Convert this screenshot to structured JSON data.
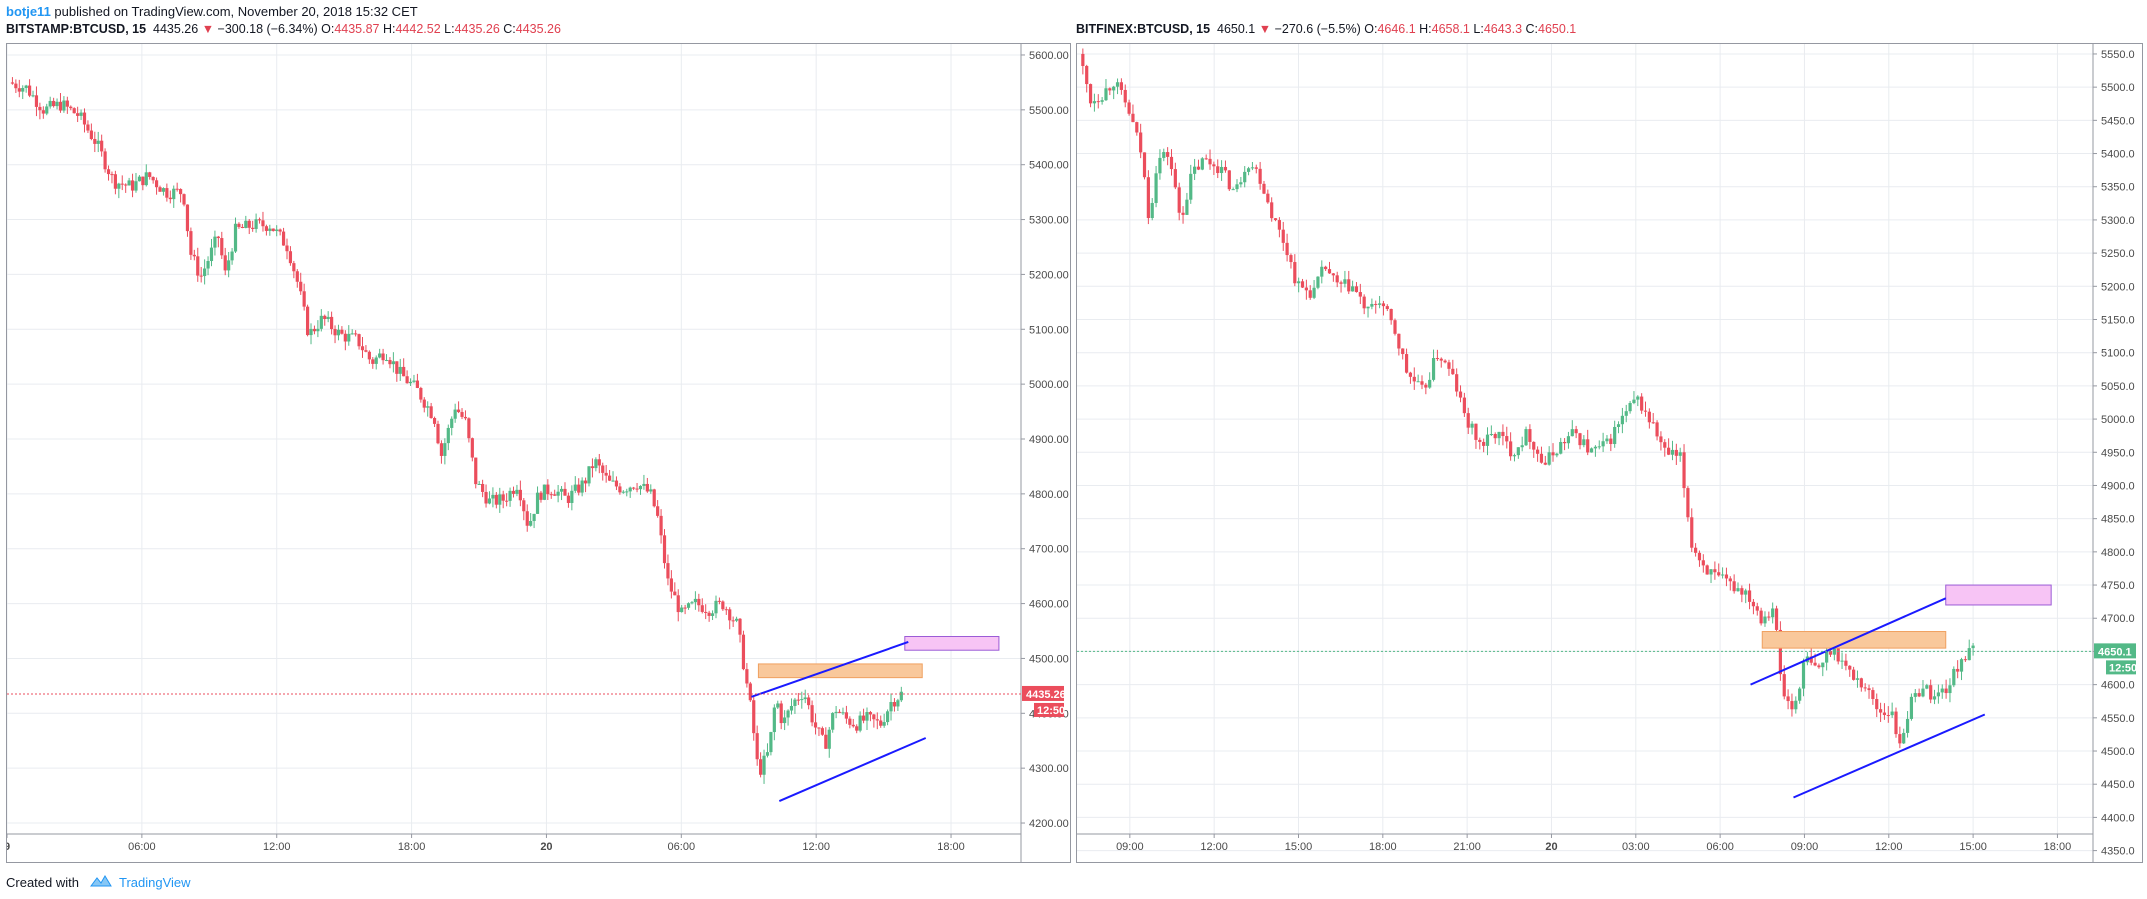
{
  "header": {
    "user": "botje11",
    "published": "published on TradingView.com, November 20, 2018 15:32 CET"
  },
  "footer": {
    "created": "Created with",
    "brand": "TradingView"
  },
  "colors": {
    "up": "#53b987",
    "down": "#eb4d5c",
    "trend": "#1a1aff",
    "zone_orange": "#f9c89b",
    "zone_pink": "#f7c4f5"
  },
  "chart_data": [
    {
      "type": "candlestick",
      "legend": {
        "symbol": "BITSTAMP:BTCUSD, 15",
        "last": "4435.26",
        "change": "−300.18 (−6.34%)",
        "o_label": "O:",
        "o": "4435.87",
        "h_label": "H:",
        "h": "4442.52",
        "l_label": "L:",
        "l": "4435.26",
        "c_label": "C:",
        "c": "4435.26"
      },
      "ylim": [
        4180,
        5620
      ],
      "y_ticks": [
        "5600.00",
        "5500.00",
        "5400.00",
        "5300.00",
        "5200.00",
        "5100.00",
        "5000.00",
        "4900.00",
        "4800.00",
        "4700.00",
        "4600.00",
        "4500.00",
        "4400.00",
        "4300.00",
        "4200.00"
      ],
      "y_tick_values": [
        5600,
        5500,
        5400,
        5300,
        5200,
        5100,
        5000,
        4900,
        4800,
        4700,
        4600,
        4500,
        4400,
        4300,
        4200
      ],
      "x_ticks": [
        "9",
        "06:00",
        "12:00",
        "18:00",
        "20",
        "06:00",
        "12:00",
        "18:00"
      ],
      "price_line": 4435.26,
      "price_label": "4435.26",
      "countdown": "12:50",
      "path": [
        [
          0,
          5550
        ],
        [
          5,
          5540
        ],
        [
          10,
          5500
        ],
        [
          15,
          5510
        ],
        [
          20,
          5490
        ],
        [
          25,
          5440
        ],
        [
          30,
          5370
        ],
        [
          35,
          5360
        ],
        [
          40,
          5380
        ],
        [
          45,
          5350
        ],
        [
          50,
          5350
        ],
        [
          52,
          5240
        ],
        [
          55,
          5195
        ],
        [
          60,
          5270
        ],
        [
          62,
          5200
        ],
        [
          65,
          5280
        ],
        [
          70,
          5290
        ],
        [
          75,
          5290
        ],
        [
          80,
          5250
        ],
        [
          83,
          5180
        ],
        [
          86,
          5090
        ],
        [
          90,
          5120
        ],
        [
          95,
          5090
        ],
        [
          100,
          5080
        ],
        [
          104,
          5040
        ],
        [
          108,
          5060
        ],
        [
          112,
          5020
        ],
        [
          117,
          4990
        ],
        [
          122,
          4940
        ],
        [
          124,
          4870
        ],
        [
          128,
          4960
        ],
        [
          131,
          4930
        ],
        [
          134,
          4820
        ],
        [
          138,
          4785
        ],
        [
          142,
          4790
        ],
        [
          146,
          4820
        ],
        [
          149,
          4740
        ],
        [
          152,
          4800
        ],
        [
          156,
          4810
        ],
        [
          160,
          4790
        ],
        [
          165,
          4820
        ],
        [
          168,
          4860
        ],
        [
          172,
          4820
        ],
        [
          176,
          4810
        ],
        [
          180,
          4820
        ],
        [
          184,
          4800
        ],
        [
          186,
          4760
        ],
        [
          189,
          4640
        ],
        [
          193,
          4580
        ],
        [
          197,
          4600
        ],
        [
          201,
          4590
        ],
        [
          205,
          4600
        ],
        [
          209,
          4560
        ],
        [
          213,
          4400
        ],
        [
          215,
          4290
        ],
        [
          218,
          4330
        ],
        [
          220,
          4430
        ],
        [
          222,
          4380
        ],
        [
          225,
          4420
        ],
        [
          228,
          4440
        ],
        [
          231,
          4380
        ],
        [
          234,
          4340
        ],
        [
          237,
          4410
        ],
        [
          240,
          4390
        ],
        [
          243,
          4380
        ],
        [
          246,
          4390
        ],
        [
          250,
          4380
        ],
        [
          253,
          4420
        ],
        [
          256,
          4435.26
        ]
      ],
      "drawings": {
        "zone_orange": [
          215,
          4465,
          262,
          4490
        ],
        "zone_pink": [
          257,
          4515,
          284,
          4540
        ],
        "trend_upper": [
          [
            213,
            4430
          ],
          [
            258,
            4530
          ]
        ],
        "trend_lower": [
          [
            221,
            4240
          ],
          [
            263,
            4355
          ]
        ]
      }
    },
    {
      "type": "candlestick",
      "legend": {
        "symbol": "BITFINEX:BTCUSD, 15",
        "last": "4650.1",
        "change": "−270.6 (−5.5%)",
        "o_label": "O:",
        "o": "4646.1",
        "h_label": "H:",
        "h": "4658.1",
        "l_label": "L:",
        "l": "4643.3",
        "c_label": "C:",
        "c": "4650.1"
      },
      "ylim": [
        4375,
        5565
      ],
      "y_ticks": [
        "5550.0",
        "5500.0",
        "5450.0",
        "5400.0",
        "5350.0",
        "5300.0",
        "5250.0",
        "5200.0",
        "5150.0",
        "5100.0",
        "5050.0",
        "5000.0",
        "4950.0",
        "4900.0",
        "4850.0",
        "4800.0",
        "4750.0",
        "4700.0",
        "4650.0",
        "4600.0",
        "4550.0",
        "4500.0",
        "4450.0",
        "4400.0",
        "4350.0"
      ],
      "y_tick_values": [
        5550,
        5500,
        5450,
        5400,
        5350,
        5300,
        5250,
        5200,
        5150,
        5100,
        5050,
        5000,
        4950,
        4900,
        4850,
        4800,
        4750,
        4700,
        4650,
        4600,
        4550,
        4500,
        4450,
        4400,
        4350
      ],
      "x_ticks": [
        "09:00",
        "12:00",
        "15:00",
        "18:00",
        "21:00",
        "20",
        "03:00",
        "06:00",
        "09:00",
        "12:00",
        "15:00",
        "18:00"
      ],
      "price_line": 4650.1,
      "price_label": "4650.1",
      "countdown": "12:50",
      "path": [
        [
          0,
          5550
        ],
        [
          3,
          5480
        ],
        [
          6,
          5490
        ],
        [
          9,
          5510
        ],
        [
          13,
          5460
        ],
        [
          16,
          5400
        ],
        [
          18,
          5300
        ],
        [
          20,
          5390
        ],
        [
          23,
          5400
        ],
        [
          26,
          5300
        ],
        [
          29,
          5370
        ],
        [
          32,
          5390
        ],
        [
          36,
          5380
        ],
        [
          40,
          5340
        ],
        [
          43,
          5390
        ],
        [
          46,
          5370
        ],
        [
          50,
          5300
        ],
        [
          53,
          5260
        ],
        [
          56,
          5200
        ],
        [
          60,
          5190
        ],
        [
          63,
          5230
        ],
        [
          66,
          5200
        ],
        [
          70,
          5200
        ],
        [
          74,
          5160
        ],
        [
          77,
          5180
        ],
        [
          81,
          5130
        ],
        [
          84,
          5070
        ],
        [
          88,
          5040
        ],
        [
          92,
          5100
        ],
        [
          96,
          5060
        ],
        [
          99,
          5000
        ],
        [
          103,
          4960
        ],
        [
          107,
          4980
        ],
        [
          111,
          4950
        ],
        [
          115,
          4980
        ],
        [
          119,
          4930
        ],
        [
          123,
          4960
        ],
        [
          127,
          4980
        ],
        [
          131,
          4950
        ],
        [
          135,
          4960
        ],
        [
          139,
          5000
        ],
        [
          143,
          5030
        ],
        [
          147,
          4990
        ],
        [
          150,
          4950
        ],
        [
          154,
          4940
        ],
        [
          157,
          4810
        ],
        [
          160,
          4780
        ],
        [
          163,
          4760
        ],
        [
          167,
          4750
        ],
        [
          171,
          4740
        ],
        [
          175,
          4700
        ],
        [
          178,
          4720
        ],
        [
          180,
          4590
        ],
        [
          183,
          4560
        ],
        [
          186,
          4640
        ],
        [
          189,
          4620
        ],
        [
          193,
          4660
        ],
        [
          197,
          4620
        ],
        [
          201,
          4600
        ],
        [
          205,
          4560
        ],
        [
          208,
          4560
        ],
        [
          210,
          4510
        ],
        [
          213,
          4570
        ],
        [
          216,
          4600
        ],
        [
          219,
          4580
        ],
        [
          223,
          4600
        ],
        [
          226,
          4640
        ],
        [
          229,
          4650.1
        ]
      ],
      "drawings": {
        "zone_orange": [
          175,
          4655,
          222,
          4680
        ],
        "zone_pink": [
          222,
          4720,
          249,
          4750
        ],
        "trend_upper": [
          [
            172,
            4600
          ],
          [
            222,
            4730
          ]
        ],
        "trend_lower": [
          [
            183,
            4430
          ],
          [
            232,
            4555
          ]
        ]
      }
    }
  ]
}
